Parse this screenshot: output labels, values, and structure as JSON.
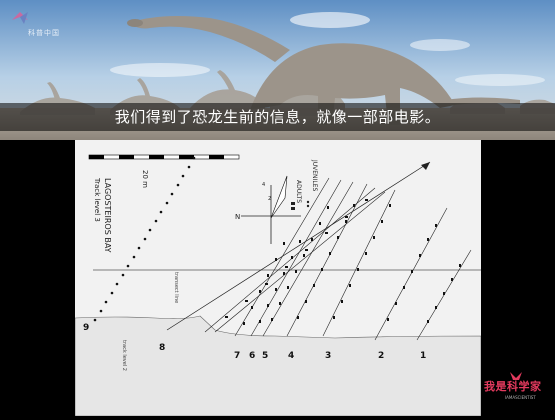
{
  "subtitle": "我们得到了恐龙生前的信息，就像一部部电影。",
  "logo": {
    "text": "科普中国"
  },
  "map": {
    "title": "LAGOSTEIROS BAY",
    "subtitle": "Track level 3",
    "scale_label": "20 m",
    "compass": {
      "north": "N",
      "tick_a": "4",
      "tick_b": "2"
    },
    "legend": {
      "juveniles": "JUVENILES",
      "adults": "ADULTS"
    },
    "transect_label": "transect line",
    "lower_level_label": "track level 2",
    "trackway_numbers": [
      "1",
      "2",
      "3",
      "4",
      "5",
      "6",
      "7",
      "8",
      "9"
    ]
  },
  "watermark": {
    "text": "我是科学家",
    "sub": "IAMASCIENTIST"
  },
  "colors": {
    "sky": "#8fb7d9",
    "ground": "#a9a29a",
    "dino": "#9c948a",
    "brand_red": "#e33a5e"
  }
}
